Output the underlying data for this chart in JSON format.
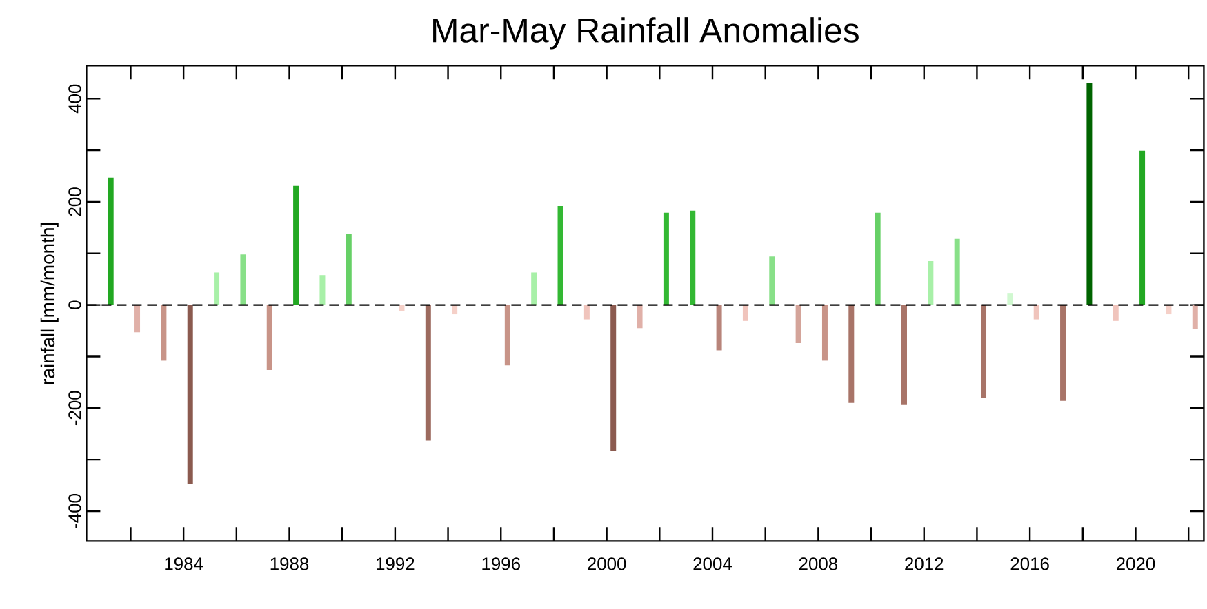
{
  "chart_data": {
    "type": "bar",
    "title": "Mar-May Rainfall Anomalies",
    "ylabel": "rainfall [mm/month]",
    "x": [
      "1981-04",
      "1982-04",
      "1983-04",
      "1984-04",
      "1985-04",
      "1986-04",
      "1987-04",
      "1988-04",
      "1989-04",
      "1990-04",
      "1992-04",
      "1993-04",
      "1994-04",
      "1996-04",
      "1997-04",
      "1998-04",
      "1999-04",
      "2000-04",
      "2001-04",
      "2002-04",
      "2003-04",
      "2004-04",
      "2005-04",
      "2006-04",
      "2007-04",
      "2008-04",
      "2009-04",
      "2010-04",
      "2011-04",
      "2012-04",
      "2013-04",
      "2014-04",
      "2015-04",
      "2016-04",
      "2017-04",
      "2018-04",
      "2019-04",
      "2020-04",
      "2021-04",
      "2022-04"
    ],
    "values": [
      247,
      -53,
      -108,
      -348,
      63,
      98,
      -126,
      231,
      58,
      137,
      -12,
      -263,
      -18,
      -117,
      63,
      192,
      -28,
      -283,
      -45,
      179,
      183,
      -88,
      -31,
      94,
      -74,
      -108,
      -190,
      179,
      -194,
      85,
      128,
      -181,
      22,
      -28,
      -186,
      431,
      -31,
      299,
      -18,
      -47
    ],
    "colors": [
      "#22a822",
      "#e0b0a8",
      "#c89488",
      "#8b5a4f",
      "#a8f0a8",
      "#88e088",
      "#c89488",
      "#22a822",
      "#a8f0a8",
      "#66d066",
      "#f5d0c8",
      "#9c6a5e",
      "#f5d0c8",
      "#c89488",
      "#a8f0a8",
      "#33b833",
      "#f0c4bc",
      "#8b5a4f",
      "#e0b0a8",
      "#33b833",
      "#33b833",
      "#b8847a",
      "#f0c4bc",
      "#88e088",
      "#d4a49a",
      "#c89488",
      "#a87468",
      "#66d066",
      "#a87468",
      "#a8f0a8",
      "#88e088",
      "#a87468",
      "#d0f8d0",
      "#f0c4bc",
      "#a87468",
      "#006400",
      "#f0c4bc",
      "#22a822",
      "#f5d0c8",
      "#e0b0a8"
    ],
    "xlim": [
      "1980-05",
      "2022-08"
    ],
    "xticks": [
      {
        "value": "1982",
        "label": null
      },
      "1984",
      {
        "value": "1986",
        "label": null
      },
      "1988",
      {
        "value": "1990",
        "label": null
      },
      "1992",
      {
        "value": "1994",
        "label": null
      },
      "1996",
      {
        "value": "1998",
        "label": null
      },
      "2000",
      {
        "value": "2002",
        "label": null
      },
      "2004",
      {
        "value": "2006",
        "label": null
      },
      "2008",
      {
        "value": "2010",
        "label": null
      },
      "2012",
      {
        "value": "2014",
        "label": null
      },
      "2016",
      {
        "value": "2018",
        "label": null
      },
      "2020",
      {
        "value": "2022",
        "label": null
      }
    ],
    "ylim": [
      -458,
      464
    ],
    "yticks": [
      -400,
      {
        "value": -300,
        "label": null
      },
      -200,
      {
        "value": -100,
        "label": null
      },
      0,
      {
        "value": 100,
        "label": null
      },
      200,
      {
        "value": 300,
        "label": null
      },
      400
    ],
    "ref_lines": [
      {
        "axis": "y",
        "value": 0,
        "line_style": "dashed",
        "color": "#000000"
      }
    ]
  }
}
